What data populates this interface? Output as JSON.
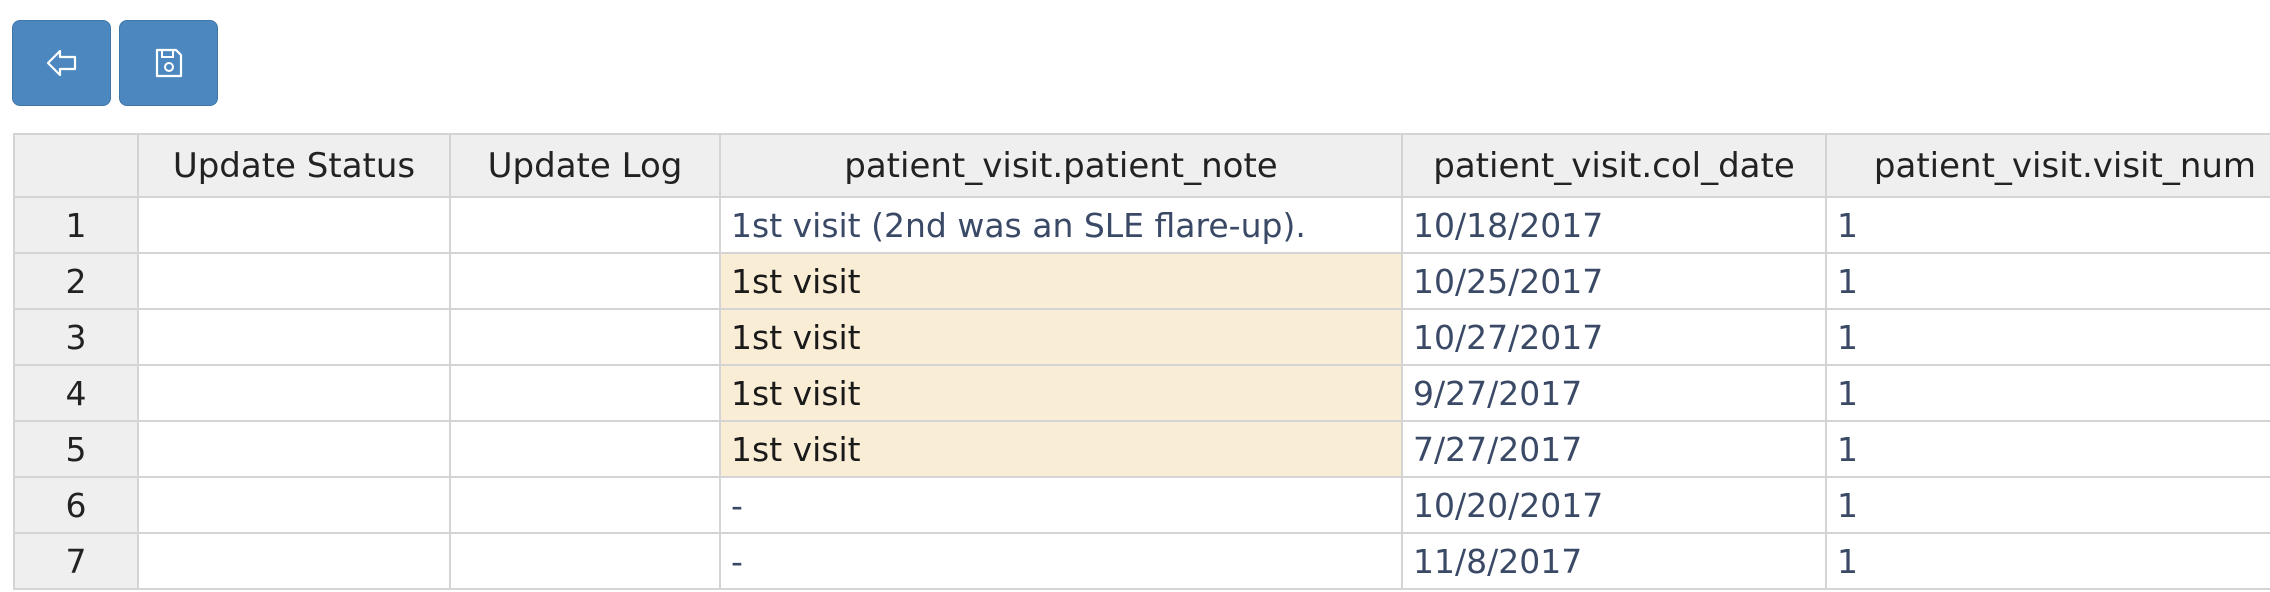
{
  "toolbar": {
    "back_icon": "arrow-left-icon",
    "save_icon": "floppy-disk-icon",
    "button_color": "#4c88bf"
  },
  "grid": {
    "columns": [
      "",
      "Update Status",
      "Update Log",
      "patient_visit.patient_note",
      "patient_visit.col_date",
      "patient_visit.visit_num"
    ],
    "highlight_color": "#faedd6",
    "rows": [
      {
        "num": "1",
        "status": "",
        "log": "",
        "note": "1st visit (2nd was an SLE flare-up).",
        "note_highlight": false,
        "date": "10/18/2017",
        "visit": "1"
      },
      {
        "num": "2",
        "status": "",
        "log": "",
        "note": "1st visit",
        "note_highlight": true,
        "date": "10/25/2017",
        "visit": "1"
      },
      {
        "num": "3",
        "status": "",
        "log": "",
        "note": "1st visit",
        "note_highlight": true,
        "date": "10/27/2017",
        "visit": "1"
      },
      {
        "num": "4",
        "status": "",
        "log": "",
        "note": "1st visit",
        "note_highlight": true,
        "date": "9/27/2017",
        "visit": "1"
      },
      {
        "num": "5",
        "status": "",
        "log": "",
        "note": "1st visit",
        "note_highlight": true,
        "date": "7/27/2017",
        "visit": "1"
      },
      {
        "num": "6",
        "status": "",
        "log": "",
        "note": "-",
        "note_highlight": false,
        "date": "10/20/2017",
        "visit": "1"
      },
      {
        "num": "7",
        "status": "",
        "log": "",
        "note": "-",
        "note_highlight": false,
        "date": "11/8/2017",
        "visit": "1"
      }
    ]
  }
}
